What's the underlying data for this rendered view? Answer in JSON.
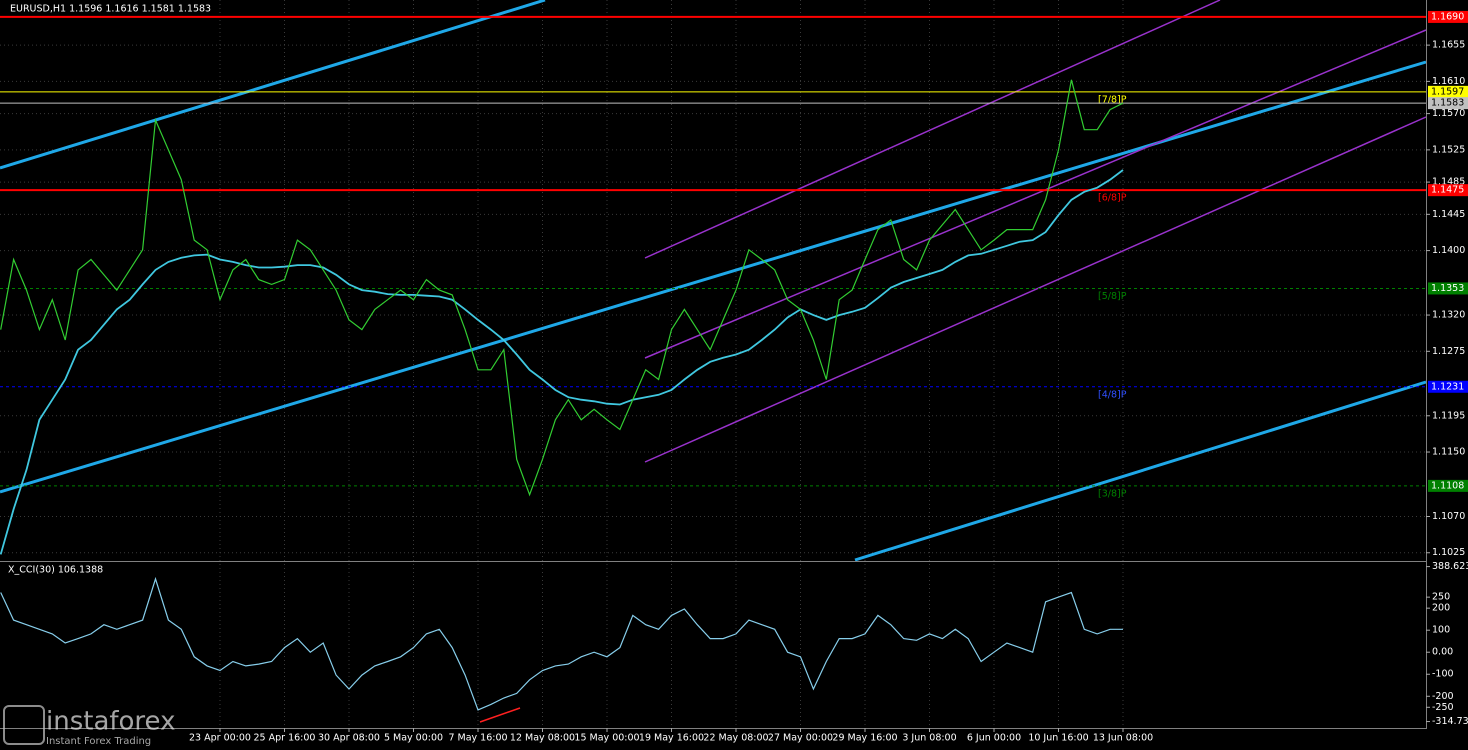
{
  "chart_data": [
    {
      "type": "line",
      "title": "EURUSD,H1 1.1596 1.1616 1.1581 1.1583",
      "categories": [
        null,
        null,
        null,
        null,
        null,
        null,
        null,
        null,
        null,
        null,
        null,
        null,
        null,
        null,
        null,
        null,
        null,
        "23 Apr 00:00",
        null,
        null,
        null,
        null,
        "25 Apr 16:00",
        null,
        null,
        null,
        null,
        "30 Apr 08:00",
        null,
        null,
        null,
        null,
        "5 May 00:00",
        null,
        null,
        null,
        null,
        "7 May 16:00",
        null,
        null,
        null,
        null,
        "12 May 08:00",
        null,
        null,
        null,
        null,
        "15 May 00:00",
        null,
        null,
        null,
        null,
        "19 May 16:00",
        null,
        null,
        null,
        null,
        "22 May 08:00",
        null,
        null,
        null,
        null,
        "27 May 00:00",
        null,
        null,
        null,
        null,
        "29 May 16:00",
        null,
        null,
        null,
        null,
        "3 Jun 08:00",
        null,
        null,
        null,
        null,
        "6 Jun 00:00",
        null,
        null,
        null,
        null,
        "10 Jun 16:00",
        null,
        null,
        null,
        null,
        "13 Jun 08:00"
      ],
      "values": [
        1.1302,
        1.1389,
        1.1351,
        1.1302,
        1.1339,
        1.1289,
        1.1376,
        1.1389,
        1.137,
        1.1351,
        1.1376,
        1.1401,
        1.1562,
        1.1525,
        1.1488,
        1.1413,
        1.1401,
        1.1339,
        1.1376,
        1.1389,
        1.1364,
        1.1358,
        1.1364,
        1.1413,
        1.1401,
        1.1376,
        1.1351,
        1.1314,
        1.1302,
        1.1327,
        1.1339,
        1.1351,
        1.1339,
        1.1364,
        1.1351,
        1.1345,
        1.1302,
        1.1252,
        1.1252,
        1.1277,
        1.1141,
        1.1097,
        1.1141,
        1.119,
        1.1215,
        1.119,
        1.1203,
        1.119,
        1.1178,
        1.1215,
        1.1252,
        1.124,
        1.1302,
        1.1327,
        1.1302,
        1.1277,
        1.1314,
        1.1351,
        1.1401,
        1.1389,
        1.1376,
        1.1339,
        1.1327,
        1.1289,
        1.124,
        1.1339,
        1.1351,
        1.1389,
        1.1426,
        1.1438,
        1.1389,
        1.1376,
        1.1413,
        1.1432,
        1.1451,
        1.1426,
        1.1401,
        1.1413,
        1.1426,
        1.1426,
        1.1426,
        1.1463,
        1.1525,
        1.1612,
        1.155,
        1.155,
        1.1575,
        1.1583
      ],
      "color": "#32cd32",
      "ma_values": [
        1.1023,
        1.1079,
        1.1128,
        1.119,
        1.1215,
        1.124,
        1.1277,
        1.1289,
        1.1308,
        1.1327,
        1.1339,
        1.1358,
        1.1376,
        1.1386,
        1.1391,
        1.1394,
        1.1395,
        1.1389,
        1.1386,
        1.1382,
        1.1379,
        1.1379,
        1.138,
        1.1382,
        1.1382,
        1.1379,
        1.137,
        1.1358,
        1.1351,
        1.1349,
        1.1346,
        1.1345,
        1.1345,
        1.1344,
        1.1343,
        1.1339,
        1.1327,
        1.1314,
        1.1302,
        1.1289,
        1.1271,
        1.1252,
        1.124,
        1.1227,
        1.1218,
        1.1215,
        1.1213,
        1.121,
        1.1209,
        1.1215,
        1.1218,
        1.1221,
        1.1227,
        1.124,
        1.1252,
        1.1262,
        1.1267,
        1.1271,
        1.1277,
        1.1289,
        1.1302,
        1.1317,
        1.1327,
        1.132,
        1.1314,
        1.132,
        1.1324,
        1.1329,
        1.1341,
        1.1354,
        1.1361,
        1.1366,
        1.1371,
        1.1376,
        1.1386,
        1.1394,
        1.1396,
        1.1401,
        1.1406,
        1.1411,
        1.1413,
        1.1423,
        1.1444,
        1.1463,
        1.1473,
        1.1478,
        1.1488,
        1.15
      ],
      "ma_color": "#40c8e0",
      "ylim": [
        1.1016,
        1.1711
      ],
      "yticks": [
        1.1025,
        {
          "value": 1.107,
          "label": "1.1070"
        },
        {
          "value": 1.115,
          "label": "1.1150"
        },
        1.1195,
        1.1275,
        {
          "value": 1.132,
          "label": "1.1320"
        },
        {
          "value": 1.14,
          "label": "1.1400"
        },
        1.1445,
        1.1485,
        1.1525,
        {
          "value": 1.157,
          "label": "1.1570"
        },
        {
          "value": 1.161,
          "label": "1.1610"
        },
        1.1655
      ],
      "grid": true,
      "levels": [
        {
          "value": 1.169,
          "label": "1.1690",
          "color": "#ff0000"
        },
        {
          "value": 1.1597,
          "label": "1.1597",
          "color": "#ffff00",
          "murrey": "[7/8]P"
        },
        {
          "value": 1.1583,
          "label": "1.1583",
          "color": "#c0c0c0"
        },
        {
          "value": 1.1475,
          "label": "1.1475",
          "color": "#ff0000",
          "murrey": "[6/8]P"
        },
        {
          "value": 1.1353,
          "label": "1.1353",
          "color": "#008000",
          "murrey": "[5/8]P"
        },
        {
          "value": 1.1231,
          "label": "1.1231",
          "color": "#0000ff",
          "murrey": "[4/8]P"
        },
        {
          "value": 1.1108,
          "label": "1.1108",
          "color": "#008000",
          "murrey": "[3/8]P"
        }
      ]
    },
    {
      "type": "line",
      "title": "X_CCI(30) 106.1388",
      "values": [
        271,
        146,
        125,
        104,
        83,
        42,
        62,
        83,
        125,
        104,
        125,
        146,
        333,
        146,
        104,
        -21,
        -62,
        -83,
        -42,
        -62,
        -54,
        -42,
        21,
        62,
        0,
        42,
        -104,
        -167,
        -104,
        -62,
        -42,
        -21,
        21,
        83,
        104,
        21,
        -104,
        -262,
        -237,
        -208,
        -187,
        -125,
        -83,
        -62,
        -54,
        -21,
        0,
        -21,
        21,
        167,
        125,
        104,
        167,
        196,
        125,
        62,
        62,
        83,
        146,
        125,
        104,
        0,
        -21,
        -167,
        -42,
        62,
        62,
        83,
        167,
        125,
        62,
        54,
        83,
        62,
        104,
        62,
        -42,
        0,
        42,
        21,
        0,
        229,
        250,
        271,
        104,
        83,
        104,
        104
      ],
      "color": "#87ceeb",
      "ylim": [
        -344,
        405
      ],
      "yticks": [
        388.6237,
        250,
        200,
        100,
        {
          "value": 0,
          "label": "0.00"
        },
        -100,
        -200,
        -250,
        -314.734
      ],
      "grid": false
    }
  ],
  "watermark": {
    "brand": "instaforex",
    "tagline": "Instant Forex Trading"
  }
}
